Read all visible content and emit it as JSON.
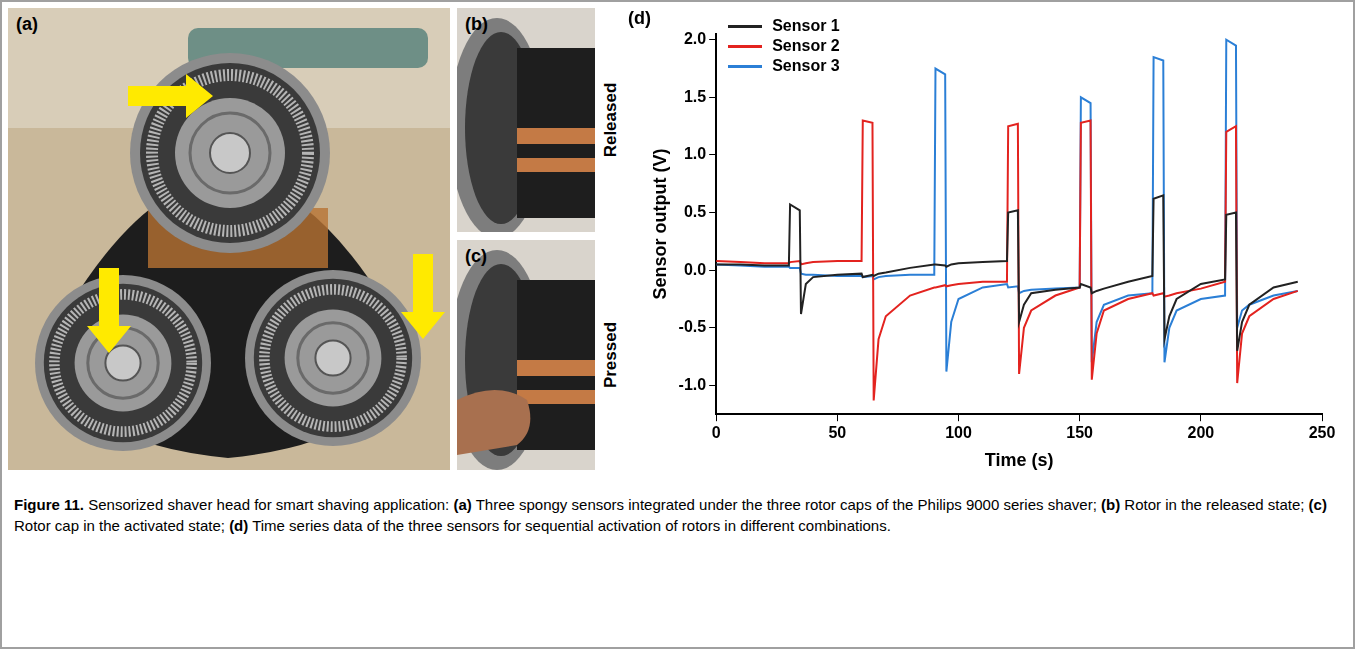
{
  "panels": {
    "a": {
      "label": "(a)"
    },
    "b": {
      "label": "(b)",
      "state": "Released"
    },
    "c": {
      "label": "(c)",
      "state": "Pressed"
    },
    "d": {
      "label": "(d)"
    }
  },
  "chart_data": {
    "type": "line",
    "x_label": "Time (s)",
    "y_label": "Sensor output (V)",
    "x": [
      0,
      10,
      20,
      30,
      30.5,
      34.5,
      35,
      37,
      40,
      50,
      60,
      60.5,
      64.5,
      65,
      67,
      70,
      80,
      90,
      90.5,
      94.5,
      95,
      97,
      100,
      110,
      120,
      120.5,
      124.5,
      125,
      127,
      130,
      140,
      150,
      150.5,
      154.5,
      155,
      157,
      160,
      170,
      180,
      180.5,
      184.5,
      185,
      187,
      190,
      200,
      210,
      210.5,
      214.5,
      215,
      217,
      220,
      230,
      240
    ],
    "series": [
      {
        "name": "Sensor 1",
        "color": "#222222",
        "values": [
          0.05,
          0.05,
          0.04,
          0.04,
          0.57,
          0.52,
          -0.38,
          -0.12,
          -0.06,
          -0.04,
          -0.03,
          -0.06,
          -0.04,
          -0.05,
          -0.03,
          -0.02,
          0.02,
          0.05,
          0.05,
          0.04,
          0.03,
          0.05,
          0.06,
          0.07,
          0.08,
          0.5,
          0.52,
          -0.45,
          -0.3,
          -0.2,
          -0.17,
          -0.15,
          -0.12,
          -0.15,
          -0.2,
          -0.18,
          -0.16,
          -0.1,
          -0.05,
          0.62,
          0.65,
          -0.6,
          -0.4,
          -0.25,
          -0.12,
          -0.08,
          0.48,
          0.5,
          -0.7,
          -0.45,
          -0.3,
          -0.15,
          -0.1
        ]
      },
      {
        "name": "Sensor 2",
        "color": "#e3231f",
        "values": [
          0.08,
          0.07,
          0.06,
          0.06,
          0.07,
          0.08,
          0.05,
          0.06,
          0.07,
          0.08,
          0.08,
          1.3,
          1.28,
          -1.13,
          -0.6,
          -0.4,
          -0.22,
          -0.15,
          -0.15,
          -0.13,
          -0.14,
          -0.13,
          -0.12,
          -0.1,
          -0.1,
          1.25,
          1.27,
          -0.9,
          -0.5,
          -0.35,
          -0.22,
          -0.15,
          1.28,
          1.3,
          -0.95,
          -0.55,
          -0.35,
          -0.25,
          -0.2,
          -0.22,
          -0.2,
          -0.23,
          -0.22,
          -0.2,
          -0.16,
          -0.1,
          1.2,
          1.25,
          -0.98,
          -0.55,
          -0.4,
          -0.25,
          -0.18
        ]
      },
      {
        "name": "Sensor 3",
        "color": "#2b7fd6",
        "values": [
          0.05,
          0.04,
          0.03,
          0.03,
          0.02,
          0.02,
          -0.03,
          -0.04,
          -0.04,
          -0.05,
          -0.05,
          -0.06,
          -0.05,
          -0.08,
          -0.06,
          -0.05,
          -0.04,
          -0.04,
          1.75,
          1.7,
          -0.88,
          -0.45,
          -0.25,
          -0.15,
          -0.12,
          -0.15,
          -0.14,
          -0.2,
          -0.18,
          -0.17,
          -0.16,
          -0.15,
          1.5,
          1.45,
          -0.8,
          -0.45,
          -0.3,
          -0.22,
          -0.2,
          1.85,
          1.82,
          -0.8,
          -0.5,
          -0.35,
          -0.25,
          -0.22,
          2.0,
          1.95,
          -0.5,
          -0.35,
          -0.3,
          -0.22,
          -0.18
        ]
      }
    ],
    "xlim": [
      0,
      250
    ],
    "xticks": [
      0,
      50,
      100,
      150,
      200,
      250
    ],
    "ylim": [
      -1.25,
      2.05
    ],
    "yticks": [
      {
        "value": -1,
        "label": "-1.0"
      },
      {
        "value": -0.5,
        "label": "-0.5"
      },
      {
        "value": 0,
        "label": "0.0"
      },
      {
        "value": 0.5,
        "label": "0.5"
      },
      {
        "value": 1,
        "label": "1.0"
      },
      {
        "value": 1.5,
        "label": "1.5"
      },
      {
        "value": 2,
        "label": "2.0"
      }
    ],
    "grid": false,
    "legend": "upper left"
  },
  "caption": {
    "label": "Figure 11.",
    "text": "Sensorized shaver head for smart shaving application: (a) Three spongy sensors integrated under the three rotor caps of the Philips 9000 series shaver; (b) Rotor in the released state; (c) Rotor cap in the activated state; (d) Time series data of the three sensors for sequential activation of rotors in different combinations."
  }
}
